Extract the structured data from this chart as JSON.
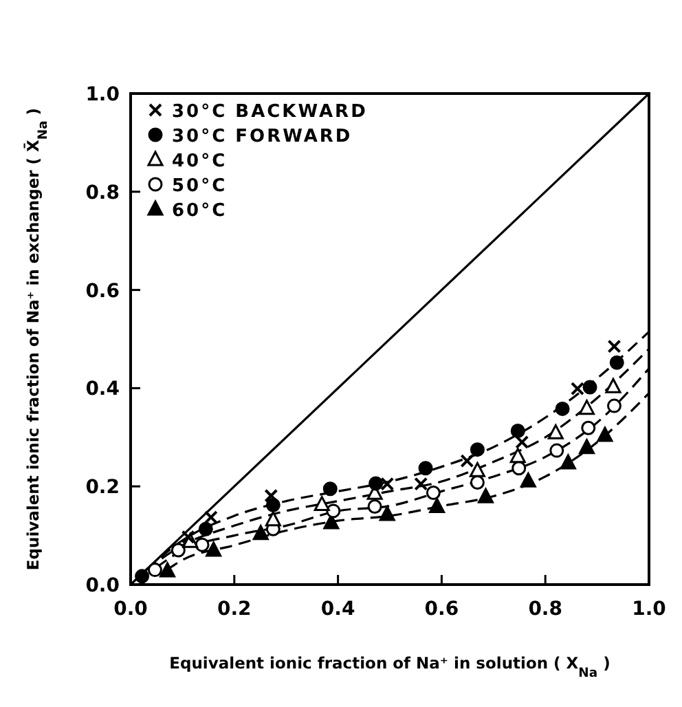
{
  "chart_data": {
    "type": "scatter",
    "xlabel": "Equivalent ionic fraction of Na⁺ in solution ( X$_{Na}$ )",
    "ylabel": "Equivalent ionic fraction of Na⁺ in exchanger ( X̄$_{Na}$ )",
    "xlim": [
      0,
      1
    ],
    "ylim": [
      0,
      1
    ],
    "xticks": [
      {
        "value": 0,
        "label": "0.0"
      },
      0.2,
      0.4,
      0.6,
      0.8,
      {
        "value": 1,
        "label": "1.0"
      }
    ],
    "yticks": [
      {
        "value": 0,
        "label": "0.0"
      },
      0.2,
      0.4,
      0.6,
      0.8,
      {
        "value": 1,
        "label": "1.0"
      }
    ],
    "grid": false,
    "legend": "top left",
    "series": [
      {
        "name": "30°C BACKWARD",
        "color": "#000000",
        "marker": "cross",
        "x": [
          0.111,
          0.155,
          0.271,
          0.495,
          0.56,
          0.649,
          0.755,
          0.862,
          0.933
        ],
        "values": [
          0.097,
          0.137,
          0.181,
          0.205,
          0.205,
          0.252,
          0.29,
          0.399,
          0.485
        ]
      },
      {
        "name": "30°C FORWARD",
        "color": "#000000",
        "marker": "circle",
        "x": [
          0.022,
          0.145,
          0.275,
          0.385,
          0.473,
          0.569,
          0.669,
          0.747,
          0.833,
          0.886,
          0.938
        ],
        "values": [
          0.017,
          0.113,
          0.162,
          0.195,
          0.206,
          0.237,
          0.275,
          0.313,
          0.358,
          0.402,
          0.452
        ]
      },
      {
        "name": "40°C",
        "color": "#000000",
        "marker": "triangle-open",
        "x": [
          0.115,
          0.275,
          0.369,
          0.471,
          0.669,
          0.747,
          0.82,
          0.88,
          0.931
        ],
        "values": [
          0.088,
          0.132,
          0.163,
          0.186,
          0.232,
          0.261,
          0.309,
          0.359,
          0.403
        ]
      },
      {
        "name": "50°C",
        "color": "#000000",
        "marker": "circle-open",
        "x": [
          0.047,
          0.092,
          0.138,
          0.275,
          0.391,
          0.471,
          0.584,
          0.669,
          0.749,
          0.822,
          0.883,
          0.933
        ],
        "values": [
          0.03,
          0.07,
          0.081,
          0.113,
          0.15,
          0.159,
          0.187,
          0.208,
          0.237,
          0.273,
          0.319,
          0.364
        ]
      },
      {
        "name": "60°C",
        "color": "#000000",
        "marker": "triangle",
        "x": [
          0.071,
          0.16,
          0.251,
          0.387,
          0.495,
          0.591,
          0.685,
          0.767,
          0.844,
          0.88,
          0.915
        ],
        "values": [
          0.028,
          0.07,
          0.104,
          0.126,
          0.143,
          0.159,
          0.179,
          0.211,
          0.248,
          0.279,
          0.304
        ]
      },
      {
        "type": "line",
        "color": "#000000",
        "marker": "none",
        "line_style": "solid",
        "x": [
          0,
          1
        ],
        "values": [
          0,
          1
        ]
      },
      {
        "type": "line",
        "color": "#000000",
        "marker": "none",
        "line_style": "dashed",
        "x": [
          0.03,
          0.1,
          0.2,
          0.3,
          0.4,
          0.5,
          0.6,
          0.7,
          0.8,
          0.9,
          1
        ],
        "values": [
          0.03,
          0.09,
          0.14,
          0.17,
          0.19,
          0.21,
          0.24,
          0.28,
          0.34,
          0.42,
          0.515
        ]
      },
      {
        "type": "line",
        "color": "#000000",
        "marker": "none",
        "line_style": "dashed",
        "x": [
          0.03,
          0.1,
          0.2,
          0.3,
          0.4,
          0.5,
          0.6,
          0.7,
          0.8,
          0.9,
          1
        ],
        "values": [
          0.03,
          0.08,
          0.12,
          0.15,
          0.17,
          0.19,
          0.21,
          0.25,
          0.3,
          0.38,
          0.48
        ]
      },
      {
        "type": "line",
        "color": "#000000",
        "marker": "none",
        "line_style": "dashed",
        "x": [
          0.05,
          0.1,
          0.2,
          0.3,
          0.4,
          0.5,
          0.6,
          0.7,
          0.8,
          0.9,
          1
        ],
        "values": [
          0.035,
          0.07,
          0.1,
          0.12,
          0.15,
          0.16,
          0.19,
          0.22,
          0.26,
          0.33,
          0.44
        ]
      },
      {
        "type": "line",
        "color": "#000000",
        "marker": "none",
        "line_style": "dashed",
        "x": [
          0.07,
          0.1,
          0.2,
          0.3,
          0.4,
          0.5,
          0.6,
          0.7,
          0.8,
          0.9,
          1
        ],
        "values": [
          0.03,
          0.05,
          0.08,
          0.11,
          0.13,
          0.14,
          0.16,
          0.18,
          0.22,
          0.29,
          0.39
        ]
      }
    ]
  }
}
